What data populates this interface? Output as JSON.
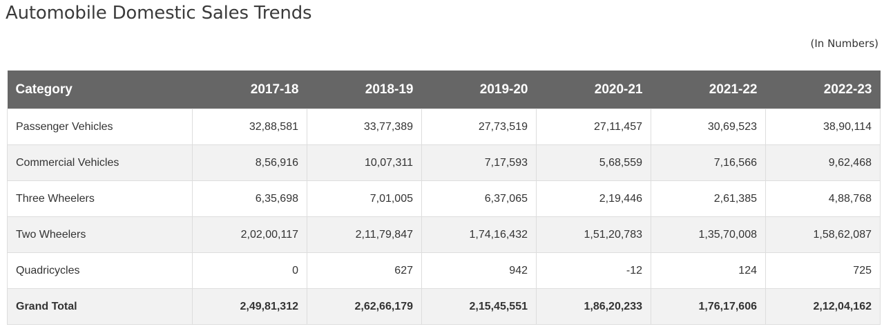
{
  "title": "Automobile Domestic Sales Trends",
  "units_note": "(In Numbers)",
  "table": {
    "headers": [
      "Category",
      "2017-18",
      "2018-19",
      "2019-20",
      "2020-21",
      "2021-22",
      "2022-23"
    ],
    "rows": [
      {
        "category": "Passenger Vehicles",
        "values": [
          "32,88,581",
          "33,77,389",
          "27,73,519",
          "27,11,457",
          "30,69,523",
          "38,90,114"
        ]
      },
      {
        "category": "Commercial Vehicles",
        "values": [
          "8,56,916",
          "10,07,311",
          "7,17,593",
          "5,68,559",
          "7,16,566",
          "9,62,468"
        ]
      },
      {
        "category": "Three Wheelers",
        "values": [
          "6,35,698",
          "7,01,005",
          "6,37,065",
          "2,19,446",
          "2,61,385",
          "4,88,768"
        ]
      },
      {
        "category": "Two Wheelers",
        "values": [
          "2,02,00,117",
          "2,11,79,847",
          "1,74,16,432",
          "1,51,20,783",
          "1,35,70,008",
          "1,58,62,087"
        ]
      },
      {
        "category": "Quadricycles",
        "values": [
          "0",
          "627",
          "942",
          "-12",
          "124",
          "725"
        ]
      },
      {
        "category": "Grand Total",
        "values": [
          "2,49,81,312",
          "2,62,66,179",
          "2,15,45,551",
          "1,86,20,233",
          "1,76,17,606",
          "2,12,04,162"
        ]
      }
    ]
  },
  "colors": {
    "header_bg": "#666666",
    "header_text": "#ffffff",
    "stripe_bg": "#f2f2f2",
    "border": "#dddddd"
  }
}
